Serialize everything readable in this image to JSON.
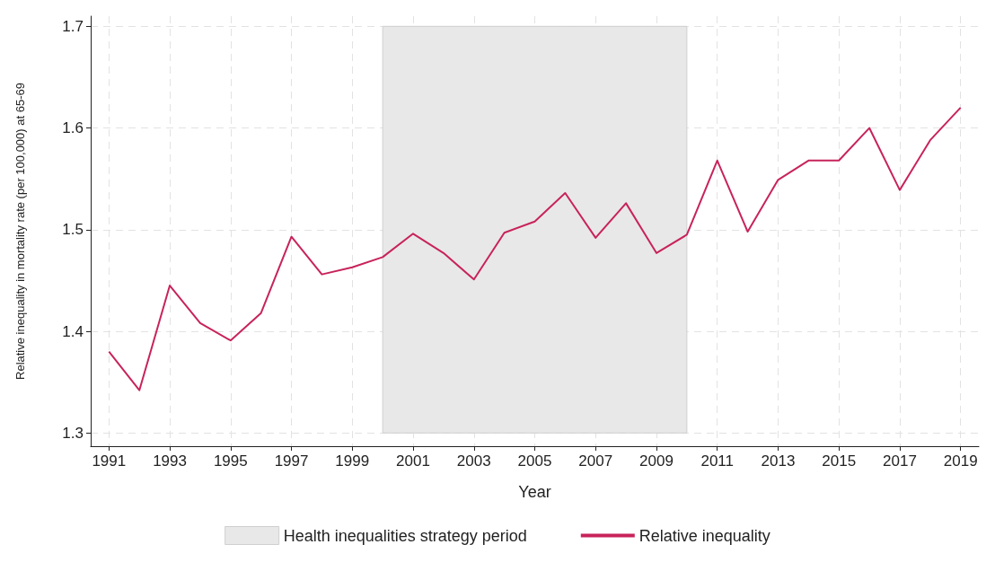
{
  "chart_data": {
    "type": "line",
    "xlabel": "Year",
    "ylabel": "Relative inequality in mortality rate (per 100,000) at 65-69",
    "x": [
      1991,
      1992,
      1993,
      1994,
      1995,
      1996,
      1997,
      1998,
      1999,
      2000,
      2001,
      2002,
      2003,
      2004,
      2005,
      2006,
      2007,
      2008,
      2009,
      2010,
      2011,
      2012,
      2013,
      2014,
      2015,
      2016,
      2017,
      2018,
      2019
    ],
    "series": [
      {
        "name": "Relative inequality",
        "color": "#c8235a",
        "values": [
          1.38,
          1.342,
          1.445,
          1.408,
          1.391,
          1.418,
          1.493,
          1.456,
          1.463,
          1.473,
          1.496,
          1.477,
          1.451,
          1.497,
          1.508,
          1.536,
          1.492,
          1.526,
          1.477,
          1.495,
          1.568,
          1.498,
          1.549,
          1.568,
          1.568,
          1.6,
          1.539,
          1.588,
          1.62
        ]
      }
    ],
    "bands": [
      {
        "axis": "x",
        "from": 2000,
        "to": 2010,
        "label": "Health inequalities strategy period",
        "color": "#e8e8e8"
      }
    ],
    "xlim": [
      1990.4,
      2019.6
    ],
    "xticks": [
      1991,
      1993,
      1995,
      1997,
      1999,
      2001,
      2003,
      2005,
      2007,
      2009,
      2011,
      2013,
      2015,
      2017,
      2019
    ],
    "ylim": [
      1.287,
      1.71
    ],
    "yticks": [
      1.3,
      1.4,
      1.5,
      1.6,
      1.7
    ],
    "grid": true,
    "legend": "bottom",
    "marker": "none",
    "line_style": "solid"
  }
}
